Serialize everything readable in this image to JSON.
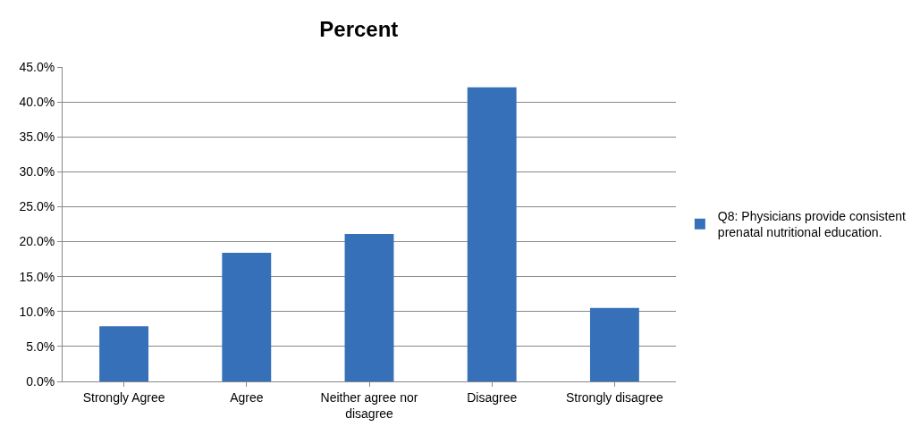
{
  "chart_data": {
    "type": "bar",
    "title": "Percent",
    "categories": [
      "Strongly Agree",
      "Agree",
      "Neither agree nor disagree",
      "Disagree",
      "Strongly disagree"
    ],
    "series": [
      {
        "name": "Q8: Physicians provide consistent prenatal nutritional education.",
        "color": "#3670b8",
        "values": [
          7.9,
          18.4,
          21.1,
          42.1,
          10.5
        ]
      }
    ],
    "ylim": [
      0,
      45
    ],
    "yticks": [
      {
        "value": 0,
        "label": "0.0%"
      },
      {
        "value": 5,
        "label": "5.0%"
      },
      {
        "value": 10,
        "label": "10.0%"
      },
      {
        "value": 15,
        "label": "15.0%"
      },
      {
        "value": 20,
        "label": "20.0%"
      },
      {
        "value": 25,
        "label": "25.0%"
      },
      {
        "value": 30,
        "label": "30.0%"
      },
      {
        "value": 35,
        "label": "35.0%"
      },
      {
        "value": 40,
        "label": "40.0%"
      },
      {
        "value": 45,
        "label": "45.0%"
      }
    ],
    "grid": "y",
    "legend": "right"
  }
}
